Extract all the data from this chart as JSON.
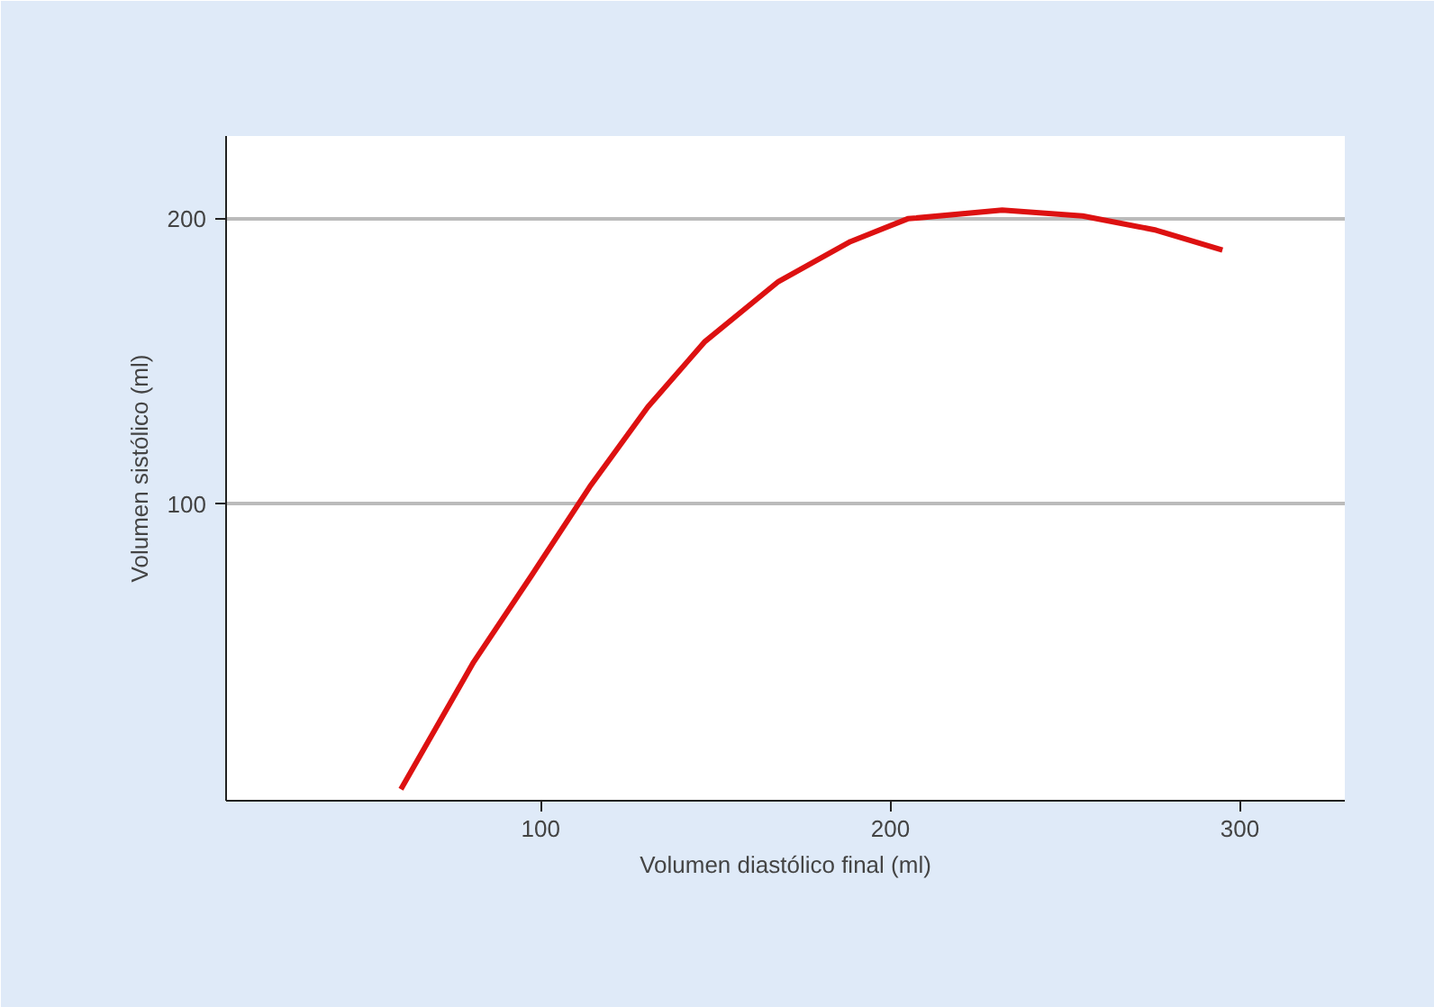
{
  "chart_data": {
    "type": "line",
    "xlabel": "Volumen diastólico final (ml)",
    "ylabel": "Volumen sistólico (ml)",
    "x": [
      60,
      80.8,
      97.4,
      114,
      130.6,
      147,
      168,
      188.6,
      205,
      232,
      255,
      276,
      295
    ],
    "series": [
      {
        "color": "#dd1111",
        "values": [
          0,
          44.6,
          75,
          106,
          134,
          157,
          178,
          192,
          200,
          203,
          201,
          196,
          189
        ]
      }
    ],
    "xlim": [
      10,
      330
    ],
    "ylim": [
      -4,
      229
    ],
    "xticks": [
      100,
      200,
      300
    ],
    "yticks": [
      100,
      200
    ],
    "grid": "y",
    "marker": "none",
    "line_style": "solid"
  }
}
